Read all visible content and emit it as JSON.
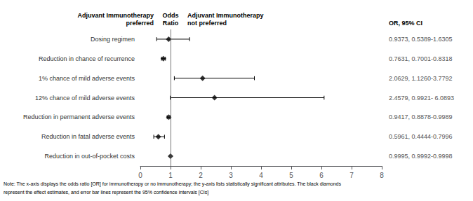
{
  "chart_data": {
    "type": "forest",
    "categories": [
      "Dosing regimen",
      "Reduction in chance of recurrence",
      "1% chance of mild adverse events",
      "12% chance of mild adverse events",
      "Reduction in permanent adverse events",
      "Reduction in fatal adverse events",
      "Reduction in out-of-pocket costs"
    ],
    "values": [
      0.9373,
      0.7631,
      2.0629,
      2.4579,
      0.9417,
      0.5961,
      0.9995
    ],
    "ci_lower": [
      0.5389,
      0.7001,
      1.126,
      0.9921,
      0.8878,
      0.4444,
      0.9992
    ],
    "ci_upper": [
      1.6305,
      0.8318,
      3.7792,
      6.0893,
      0.9989,
      0.7996,
      0.9998
    ],
    "ci_labels": [
      "0.9373, 0.5389-1.6305",
      "0.7631, 0.7001-0.8318",
      "2.0629, 1.1260-3.7792",
      "2.4579, 0.9921- 6.0893",
      "0.9417, 0.8878-0.9989",
      "0.5961, 0.4444-0.7996",
      "0.9995, 0.9992-0.9998"
    ],
    "reference_line": 1,
    "xlim": [
      0,
      8
    ],
    "xticks": [
      0,
      1,
      2,
      3,
      4,
      5,
      6,
      7,
      8
    ],
    "color": "#000000",
    "marker": "diamond",
    "grid": false,
    "column_headers": [
      "Adjuvant Immunotherapy\npreferred",
      "Odds\nRatio",
      "Adjuvant Immunotherapy\nnot preferred",
      "OR, 95% CI"
    ],
    "notes": [
      "Note: The x-axis displays the odds ratio [OR] for immunotherapy or no immunotherapy; the y-axis lists statistically significant attributes. The black diamonds",
      "represent the effect estimates, and error bar lines represent the 95% confidence intervals [CIs]"
    ]
  }
}
